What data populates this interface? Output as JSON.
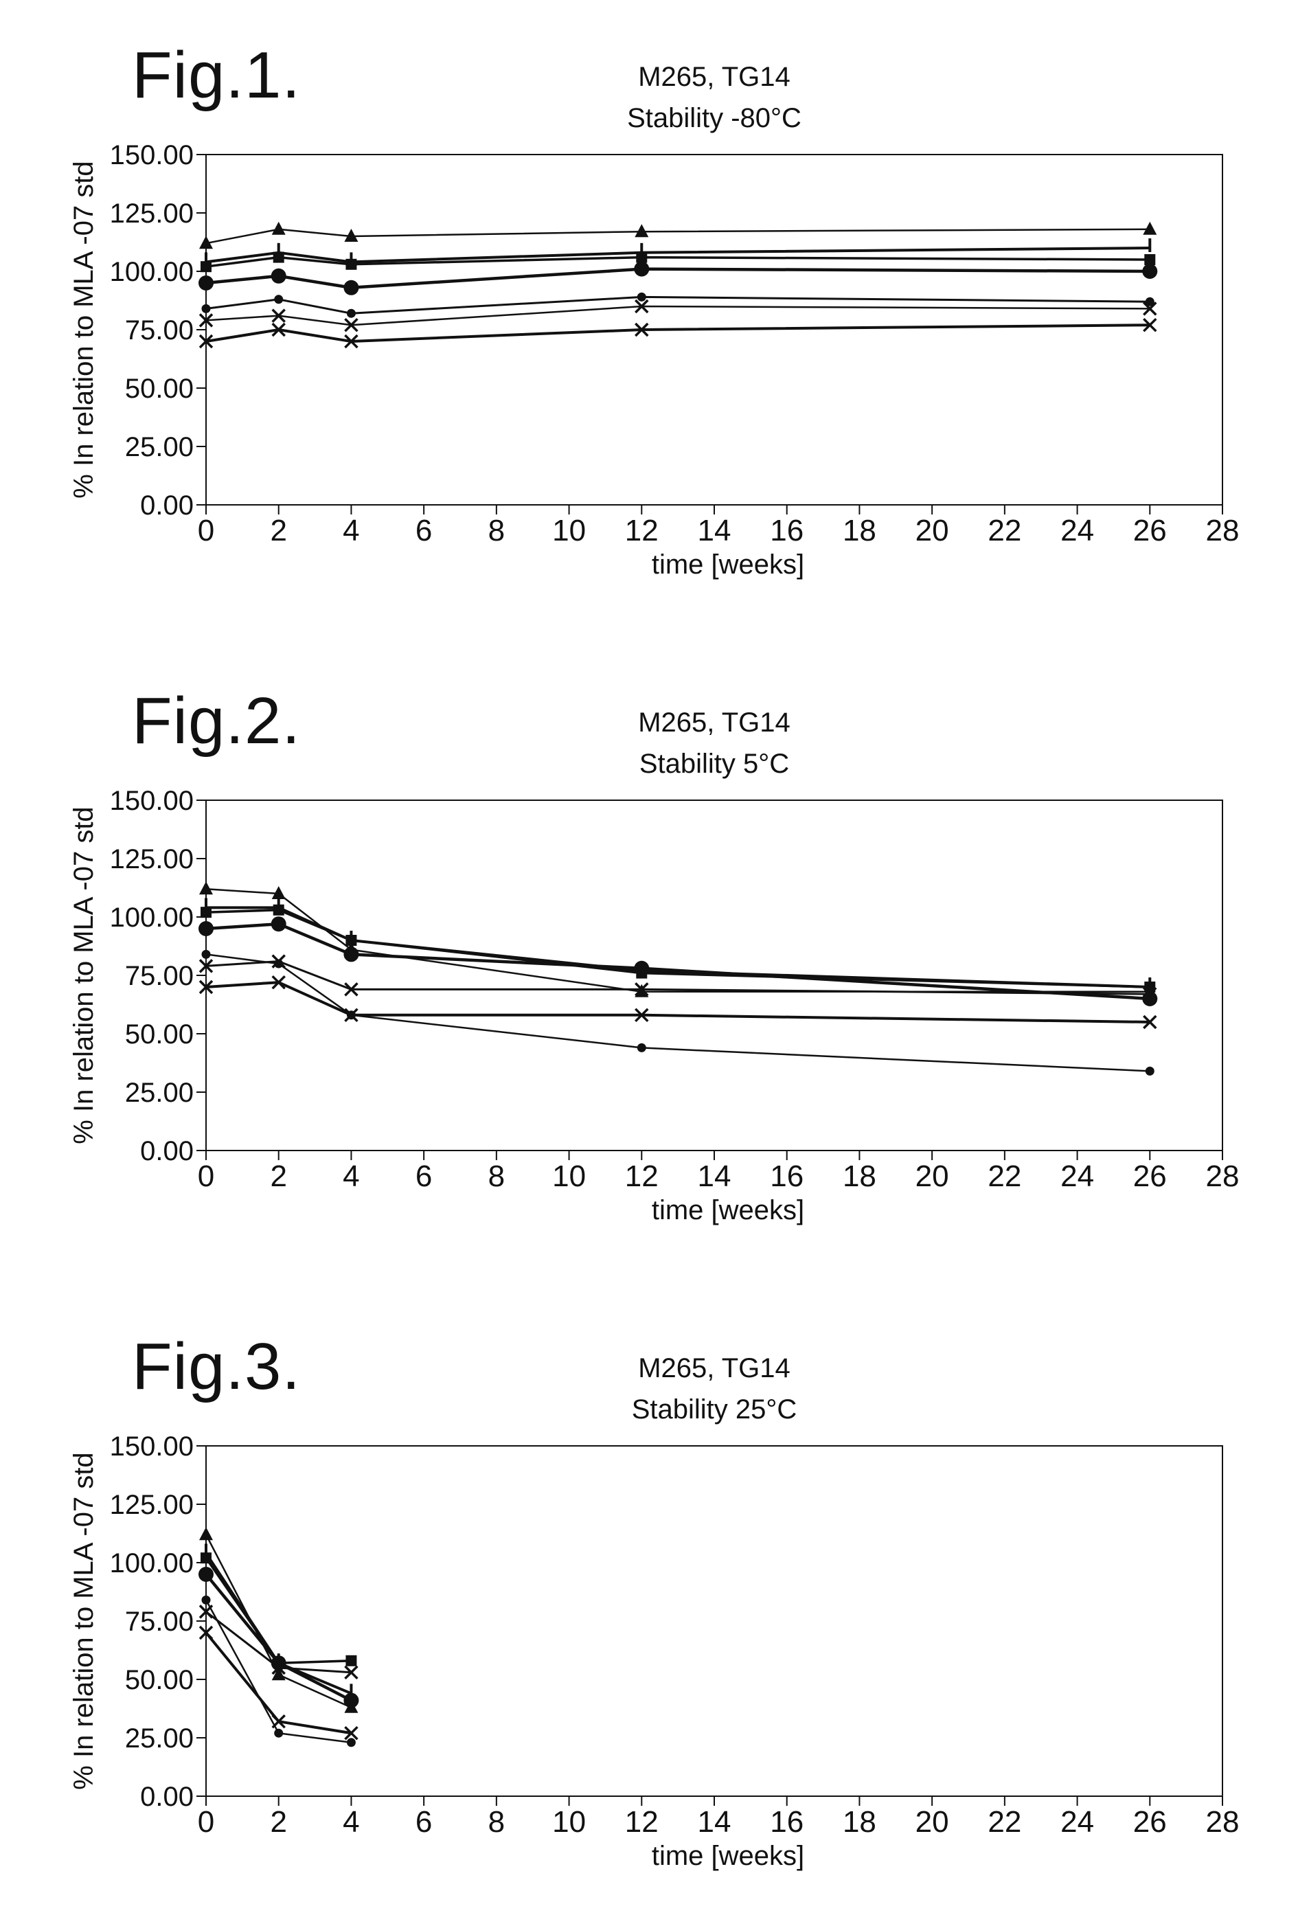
{
  "figures": [
    {
      "label": "Fig.1."
    },
    {
      "label": "Fig.2."
    },
    {
      "label": "Fig.3."
    }
  ],
  "chart_data": [
    {
      "type": "line",
      "title": "M265, TG14",
      "subtitle": "Stability -80°C",
      "xlabel": "time [weeks]",
      "ylabel": "% In relation to MLA -07 std",
      "xlim": [
        0,
        28
      ],
      "ylim": [
        0,
        150
      ],
      "xticks": [
        0,
        2,
        4,
        6,
        8,
        10,
        12,
        14,
        16,
        18,
        20,
        22,
        24,
        26,
        28
      ],
      "yticks": [
        "0.00",
        "25.00",
        "50.00",
        "75.00",
        "100.00",
        "125.00",
        "150.00"
      ],
      "grid": false,
      "series": [
        {
          "marker": "triangle",
          "x": [
            0,
            2,
            4,
            12,
            26
          ],
          "values": [
            112,
            118,
            115,
            117,
            118
          ]
        },
        {
          "marker": "bar",
          "x": [
            0,
            2,
            4,
            12,
            26
          ],
          "values": [
            104,
            108,
            104,
            108,
            110
          ]
        },
        {
          "marker": "square",
          "x": [
            0,
            2,
            4,
            12,
            26
          ],
          "values": [
            102,
            106,
            103,
            106,
            105
          ]
        },
        {
          "marker": "circle-large",
          "x": [
            0,
            2,
            4,
            12,
            26
          ],
          "values": [
            95,
            98,
            93,
            101,
            100
          ]
        },
        {
          "marker": "circle-small",
          "x": [
            0,
            2,
            4,
            12,
            26
          ],
          "values": [
            84,
            88,
            82,
            89,
            87
          ]
        },
        {
          "marker": "x",
          "x": [
            0,
            2,
            4,
            12,
            26
          ],
          "values": [
            79,
            81,
            77,
            85,
            84
          ]
        },
        {
          "marker": "x",
          "x": [
            0,
            2,
            4,
            12,
            26
          ],
          "values": [
            70,
            75,
            70,
            75,
            77
          ]
        }
      ]
    },
    {
      "type": "line",
      "title": "M265, TG14",
      "subtitle": "Stability 5°C",
      "xlabel": "time [weeks]",
      "ylabel": "% In relation to MLA -07 std",
      "xlim": [
        0,
        28
      ],
      "ylim": [
        0,
        150
      ],
      "xticks": [
        0,
        2,
        4,
        6,
        8,
        10,
        12,
        14,
        16,
        18,
        20,
        22,
        24,
        26,
        28
      ],
      "yticks": [
        "0.00",
        "25.00",
        "50.00",
        "75.00",
        "100.00",
        "125.00",
        "150.00"
      ],
      "grid": false,
      "series": [
        {
          "marker": "triangle",
          "x": [
            0,
            2,
            4,
            12,
            26
          ],
          "values": [
            112,
            110,
            86,
            68,
            68
          ]
        },
        {
          "marker": "bar",
          "x": [
            0,
            2,
            4,
            12,
            26
          ],
          "values": [
            104,
            104,
            90,
            77,
            70
          ]
        },
        {
          "marker": "square",
          "x": [
            0,
            2,
            4,
            12,
            26
          ],
          "values": [
            102,
            103,
            90,
            76,
            70
          ]
        },
        {
          "marker": "circle-large",
          "x": [
            0,
            2,
            4,
            12,
            26
          ],
          "values": [
            95,
            97,
            84,
            78,
            65
          ]
        },
        {
          "marker": "x",
          "x": [
            0,
            2,
            4,
            12,
            26
          ],
          "values": [
            79,
            81,
            69,
            69,
            67
          ]
        },
        {
          "marker": "circle-small",
          "x": [
            0,
            2,
            4,
            12,
            26
          ],
          "values": [
            84,
            80,
            58,
            44,
            34
          ]
        },
        {
          "marker": "x",
          "x": [
            0,
            2,
            4,
            12,
            26
          ],
          "values": [
            70,
            72,
            58,
            58,
            55
          ]
        }
      ]
    },
    {
      "type": "line",
      "title": "M265, TG14",
      "subtitle": "Stability 25°C",
      "xlabel": "time [weeks]",
      "ylabel": "% In relation to MLA -07 std",
      "xlim": [
        0,
        28
      ],
      "ylim": [
        0,
        150
      ],
      "xticks": [
        0,
        2,
        4,
        6,
        8,
        10,
        12,
        14,
        16,
        18,
        20,
        22,
        24,
        26,
        28
      ],
      "yticks": [
        "0.00",
        "25.00",
        "50.00",
        "75.00",
        "100.00",
        "125.00",
        "150.00"
      ],
      "grid": false,
      "series": [
        {
          "marker": "triangle",
          "x": [
            0,
            2,
            4
          ],
          "values": [
            112,
            52,
            38
          ]
        },
        {
          "marker": "bar",
          "x": [
            0,
            2,
            4
          ],
          "values": [
            104,
            57,
            44
          ]
        },
        {
          "marker": "square",
          "x": [
            0,
            2,
            4
          ],
          "values": [
            102,
            57,
            58
          ]
        },
        {
          "marker": "circle-large",
          "x": [
            0,
            2,
            4
          ],
          "values": [
            95,
            57,
            41
          ]
        },
        {
          "marker": "x",
          "x": [
            0,
            2,
            4
          ],
          "values": [
            79,
            55,
            53
          ]
        },
        {
          "marker": "circle-small",
          "x": [
            0,
            2,
            4
          ],
          "values": [
            84,
            27,
            23
          ]
        },
        {
          "marker": "x",
          "x": [
            0,
            2,
            4
          ],
          "values": [
            70,
            32,
            27
          ]
        }
      ]
    }
  ]
}
